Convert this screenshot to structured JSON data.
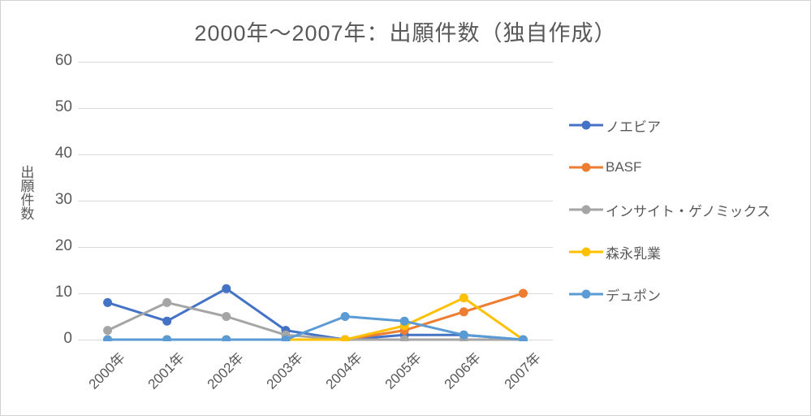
{
  "chart_data": {
    "type": "line",
    "title": "2000年～2007年：出願件数（独自作成）",
    "xlabel": "",
    "ylabel": "出願件数",
    "categories": [
      "2000年",
      "2001年",
      "2002年",
      "2003年",
      "2004年",
      "2005年",
      "2006年",
      "2007年"
    ],
    "ylim": [
      0,
      60
    ],
    "yticks": [
      0,
      10,
      20,
      30,
      40,
      50,
      60
    ],
    "grid": true,
    "legend_position": "right",
    "grid_color": "#D9D9D9",
    "text_color": "#595959",
    "background_color": "#FFFFFF",
    "series": [
      {
        "name": "ノエビア",
        "color": "#4472C4",
        "values": [
          8,
          4,
          11,
          2,
          0,
          1,
          1,
          0
        ]
      },
      {
        "name": "BASF",
        "color": "#ED7D31",
        "values": [
          0,
          0,
          0,
          0,
          0,
          2,
          6,
          10
        ]
      },
      {
        "name": "インサイト・ゲノミックス",
        "color": "#A5A5A5",
        "values": [
          2,
          8,
          5,
          1,
          0,
          0,
          0,
          0
        ]
      },
      {
        "name": "森永乳業",
        "color": "#FFC000",
        "values": [
          0,
          0,
          0,
          0,
          0,
          3,
          9,
          0
        ]
      },
      {
        "name": "デュポン",
        "color": "#5B9BD5",
        "values": [
          0,
          0,
          0,
          0,
          5,
          4,
          1,
          0
        ]
      }
    ]
  }
}
